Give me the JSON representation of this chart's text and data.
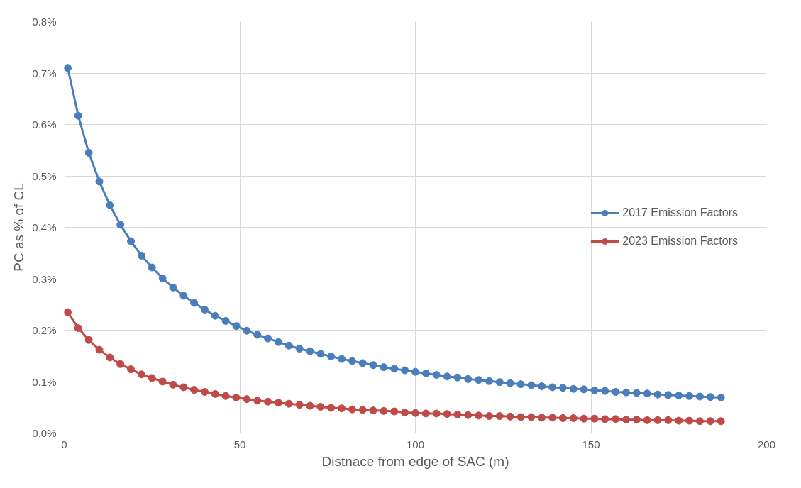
{
  "chart_data": {
    "type": "line",
    "xlabel": "Distnace from edge of SAC (m)",
    "ylabel": "PC as % of CL",
    "x": [
      1,
      4,
      7,
      10,
      13,
      16,
      19,
      22,
      25,
      28,
      31,
      34,
      37,
      40,
      43,
      46,
      49,
      52,
      55,
      58,
      61,
      64,
      67,
      70,
      73,
      76,
      79,
      82,
      85,
      88,
      91,
      94,
      97,
      100,
      103,
      106,
      109,
      112,
      115,
      118,
      121,
      124,
      127,
      130,
      133,
      136,
      139,
      142,
      145,
      148,
      151,
      154,
      157,
      160,
      163,
      166,
      169,
      172,
      175,
      178,
      181,
      184,
      187
    ],
    "series": [
      {
        "name": "2017 Emission Factors",
        "color": "#4a7ebb",
        "values": [
          0.71,
          0.617,
          0.545,
          0.489,
          0.443,
          0.405,
          0.373,
          0.345,
          0.322,
          0.301,
          0.283,
          0.267,
          0.253,
          0.24,
          0.228,
          0.218,
          0.208,
          0.199,
          0.191,
          0.184,
          0.177,
          0.17,
          0.164,
          0.159,
          0.154,
          0.149,
          0.144,
          0.14,
          0.136,
          0.132,
          0.128,
          0.125,
          0.122,
          0.119,
          0.116,
          0.113,
          0.11,
          0.108,
          0.105,
          0.103,
          0.101,
          0.099,
          0.097,
          0.095,
          0.093,
          0.091,
          0.089,
          0.088,
          0.086,
          0.085,
          0.083,
          0.082,
          0.08,
          0.079,
          0.078,
          0.077,
          0.075,
          0.074,
          0.073,
          0.072,
          0.071,
          0.07,
          0.069
        ]
      },
      {
        "name": "2023 Emission Factors",
        "color": "#be4b48",
        "values": [
          0.235,
          0.204,
          0.181,
          0.162,
          0.147,
          0.134,
          0.124,
          0.114,
          0.107,
          0.1,
          0.094,
          0.089,
          0.084,
          0.08,
          0.076,
          0.072,
          0.069,
          0.066,
          0.063,
          0.061,
          0.059,
          0.057,
          0.055,
          0.053,
          0.051,
          0.049,
          0.048,
          0.046,
          0.045,
          0.044,
          0.043,
          0.042,
          0.04,
          0.039,
          0.038,
          0.038,
          0.037,
          0.036,
          0.035,
          0.034,
          0.033,
          0.033,
          0.032,
          0.031,
          0.031,
          0.03,
          0.03,
          0.029,
          0.029,
          0.028,
          0.028,
          0.027,
          0.027,
          0.026,
          0.026,
          0.025,
          0.025,
          0.025,
          0.024,
          0.024,
          0.023,
          0.023,
          0.023
        ]
      }
    ],
    "xlim": [
      0,
      200
    ],
    "xticks": [
      0,
      50,
      100,
      150,
      200
    ],
    "ylim": [
      0,
      0.8
    ],
    "yticks": [
      {
        "value": 0,
        "label": "0.0%"
      },
      {
        "value": 0.1,
        "label": "0.1%"
      },
      {
        "value": 0.2,
        "label": "0.2%"
      },
      {
        "value": 0.3,
        "label": "0.3%"
      },
      {
        "value": 0.4,
        "label": "0.4%"
      },
      {
        "value": 0.5,
        "label": "0.5%"
      },
      {
        "value": 0.6,
        "label": "0.6%"
      },
      {
        "value": 0.7,
        "label": "0.7%"
      },
      {
        "value": 0.8,
        "label": "0.8%"
      }
    ],
    "grid": true,
    "legend": "right",
    "marker": "circle",
    "line_style": "solid"
  }
}
